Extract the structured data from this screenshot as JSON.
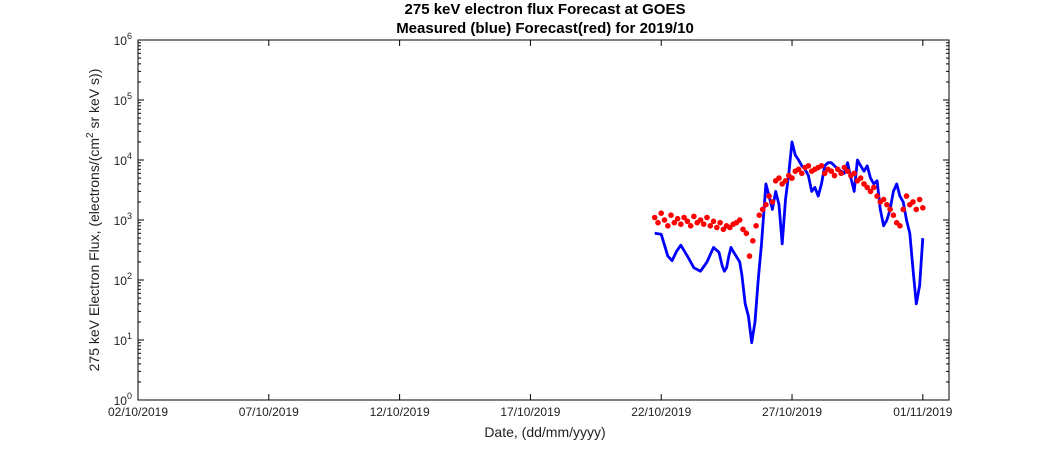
{
  "chart_data": {
    "type": "line",
    "title": "275 keV electron flux Forecast at GOES",
    "subtitle": "Measured (blue) Forecast(red) for 2019/10",
    "xlabel": "Date, (dd/mm/yyyy)",
    "ylabel": {
      "prefix": "275 keV Electron Flux, (electrons/(cm",
      "sup": "2",
      "suffix": " sr keV s))"
    },
    "x_range": [
      "2019-10-02",
      "2019-11-02"
    ],
    "x_ticks": [
      {
        "date": "2019-10-02",
        "label": "02/10/2019"
      },
      {
        "date": "2019-10-07",
        "label": "07/10/2019"
      },
      {
        "date": "2019-10-12",
        "label": "12/10/2019"
      },
      {
        "date": "2019-10-17",
        "label": "17/10/2019"
      },
      {
        "date": "2019-10-22",
        "label": "22/10/2019"
      },
      {
        "date": "2019-10-27",
        "label": "27/10/2019"
      },
      {
        "date": "2019-11-01",
        "label": "01/11/2019"
      }
    ],
    "y_scale": "log",
    "ylim": [
      1,
      1000000
    ],
    "y_ticks": [
      {
        "base": "10",
        "exp": "0"
      },
      {
        "base": "10",
        "exp": "1"
      },
      {
        "base": "10",
        "exp": "2"
      },
      {
        "base": "10",
        "exp": "3"
      },
      {
        "base": "10",
        "exp": "4"
      },
      {
        "base": "10",
        "exp": "5"
      },
      {
        "base": "10",
        "exp": "6"
      }
    ],
    "grid": false,
    "series": [
      {
        "color": "#0000ff",
        "style": "line",
        "x": [
          "2019-10-21T18:00",
          "2019-10-22T00:00",
          "2019-10-22T06:00",
          "2019-10-22T10:00",
          "2019-10-22T14:00",
          "2019-10-22T18:00",
          "2019-10-23T00:00",
          "2019-10-23T06:00",
          "2019-10-23T12:00",
          "2019-10-23T18:00",
          "2019-10-24T00:00",
          "2019-10-24T05:00",
          "2019-10-24T08:00",
          "2019-10-24T10:00",
          "2019-10-24T12:00",
          "2019-10-24T14:00",
          "2019-10-24T16:00",
          "2019-10-24T18:00",
          "2019-10-25T00:00",
          "2019-10-25T02:00",
          "2019-10-25T05:00",
          "2019-10-25T08:00",
          "2019-10-25T11:00",
          "2019-10-25T14:00",
          "2019-10-25T17:00",
          "2019-10-25T20:00",
          "2019-10-26T00:00",
          "2019-10-26T03:00",
          "2019-10-26T06:00",
          "2019-10-26T09:00",
          "2019-10-26T12:00",
          "2019-10-26T15:00",
          "2019-10-26T18:00",
          "2019-10-26T21:00",
          "2019-10-27T00:00",
          "2019-10-27T03:00",
          "2019-10-27T06:00",
          "2019-10-27T09:00",
          "2019-10-27T12:00",
          "2019-10-27T15:00",
          "2019-10-27T18:00",
          "2019-10-27T21:00",
          "2019-10-28T00:00",
          "2019-10-28T03:00",
          "2019-10-28T06:00",
          "2019-10-28T09:00",
          "2019-10-28T12:00",
          "2019-10-28T15:00",
          "2019-10-28T18:00",
          "2019-10-28T21:00",
          "2019-10-29T00:00",
          "2019-10-29T03:00",
          "2019-10-29T06:00",
          "2019-10-29T09:00",
          "2019-10-29T12:00",
          "2019-10-29T15:00",
          "2019-10-29T18:00",
          "2019-10-29T21:00",
          "2019-10-30T00:00",
          "2019-10-30T03:00",
          "2019-10-30T06:00",
          "2019-10-30T09:00",
          "2019-10-30T12:00",
          "2019-10-30T15:00",
          "2019-10-30T18:00",
          "2019-10-30T21:00",
          "2019-10-31T00:00",
          "2019-10-31T03:00",
          "2019-10-31T06:00",
          "2019-10-31T09:00",
          "2019-10-31T12:00",
          "2019-10-31T15:00",
          "2019-10-31T18:00",
          "2019-10-31T21:00",
          "2019-11-01T00:00"
        ],
        "values": [
          600,
          580,
          250,
          210,
          300,
          380,
          250,
          160,
          140,
          200,
          350,
          290,
          170,
          140,
          160,
          250,
          350,
          300,
          200,
          120,
          40,
          25,
          9,
          20,
          100,
          400,
          4000,
          2500,
          1500,
          3000,
          1800,
          400,
          2200,
          6000,
          20000,
          12000,
          10000,
          8000,
          7000,
          5500,
          3000,
          3500,
          2500,
          4000,
          8000,
          9000,
          9000,
          8000,
          7000,
          6500,
          6000,
          9000,
          5000,
          3000,
          10000,
          8000,
          6500,
          8000,
          5000,
          4000,
          4500,
          1500,
          800,
          1000,
          1500,
          3000,
          4000,
          2500,
          2000,
          1000,
          600,
          150,
          40,
          80,
          500
        ],
        "x_note": "",
        "values_note": ""
      },
      {
        "color": "#ff0000",
        "style": "points",
        "x": [
          "2019-10-21T18:00",
          "2019-10-21T21:00",
          "2019-10-22T00:00",
          "2019-10-22T03:00",
          "2019-10-22T06:00",
          "2019-10-22T09:00",
          "2019-10-22T12:00",
          "2019-10-22T15:00",
          "2019-10-22T18:00",
          "2019-10-22T21:00",
          "2019-10-23T00:00",
          "2019-10-23T03:00",
          "2019-10-23T06:00",
          "2019-10-23T09:00",
          "2019-10-23T12:00",
          "2019-10-23T15:00",
          "2019-10-23T18:00",
          "2019-10-23T21:00",
          "2019-10-24T00:00",
          "2019-10-24T03:00",
          "2019-10-24T06:00",
          "2019-10-24T09:00",
          "2019-10-24T12:00",
          "2019-10-24T15:00",
          "2019-10-24T18:00",
          "2019-10-24T21:00",
          "2019-10-25T00:00",
          "2019-10-25T03:00",
          "2019-10-25T06:00",
          "2019-10-25T09:00",
          "2019-10-25T12:00",
          "2019-10-25T15:00",
          "2019-10-25T18:00",
          "2019-10-25T21:00",
          "2019-10-26T00:00",
          "2019-10-26T03:00",
          "2019-10-26T06:00",
          "2019-10-26T09:00",
          "2019-10-26T12:00",
          "2019-10-26T15:00",
          "2019-10-26T18:00",
          "2019-10-26T21:00",
          "2019-10-27T00:00",
          "2019-10-27T03:00",
          "2019-10-27T06:00",
          "2019-10-27T09:00",
          "2019-10-27T12:00",
          "2019-10-27T15:00",
          "2019-10-27T18:00",
          "2019-10-27T21:00",
          "2019-10-28T00:00",
          "2019-10-28T03:00",
          "2019-10-28T06:00",
          "2019-10-28T09:00",
          "2019-10-28T12:00",
          "2019-10-28T15:00",
          "2019-10-28T18:00",
          "2019-10-28T21:00",
          "2019-10-29T00:00",
          "2019-10-29T03:00",
          "2019-10-29T06:00",
          "2019-10-29T09:00",
          "2019-10-29T12:00",
          "2019-10-29T15:00",
          "2019-10-29T18:00",
          "2019-10-29T21:00",
          "2019-10-30T00:00",
          "2019-10-30T03:00",
          "2019-10-30T06:00",
          "2019-10-30T09:00",
          "2019-10-30T12:00",
          "2019-10-30T15:00",
          "2019-10-30T18:00",
          "2019-10-30T21:00",
          "2019-10-31T00:00",
          "2019-10-31T03:00",
          "2019-10-31T06:00",
          "2019-10-31T09:00",
          "2019-10-31T12:00",
          "2019-10-31T15:00",
          "2019-10-31T18:00",
          "2019-10-31T21:00",
          "2019-11-01T00:00"
        ],
        "values": [
          1100,
          900,
          1300,
          1000,
          800,
          1200,
          900,
          1050,
          850,
          1100,
          950,
          800,
          1150,
          900,
          1000,
          850,
          1100,
          800,
          950,
          750,
          900,
          700,
          800,
          750,
          850,
          900,
          1000,
          700,
          600,
          250,
          450,
          800,
          1200,
          1500,
          1800,
          2500,
          2000,
          4500,
          5000,
          4000,
          4500,
          5500,
          5000,
          6500,
          7000,
          6000,
          7500,
          8000,
          6500,
          7000,
          7500,
          8000,
          6000,
          7000,
          6500,
          5500,
          7000,
          6000,
          7500,
          6500,
          5500,
          6000,
          4500,
          5000,
          4000,
          3500,
          3000,
          3500,
          2500,
          2000,
          2200,
          1800,
          1500,
          1200,
          900,
          800,
          1500,
          2500,
          1800,
          2000,
          1500,
          2200,
          1600
        ],
        "x_note": "",
        "values_note": ""
      }
    ]
  }
}
